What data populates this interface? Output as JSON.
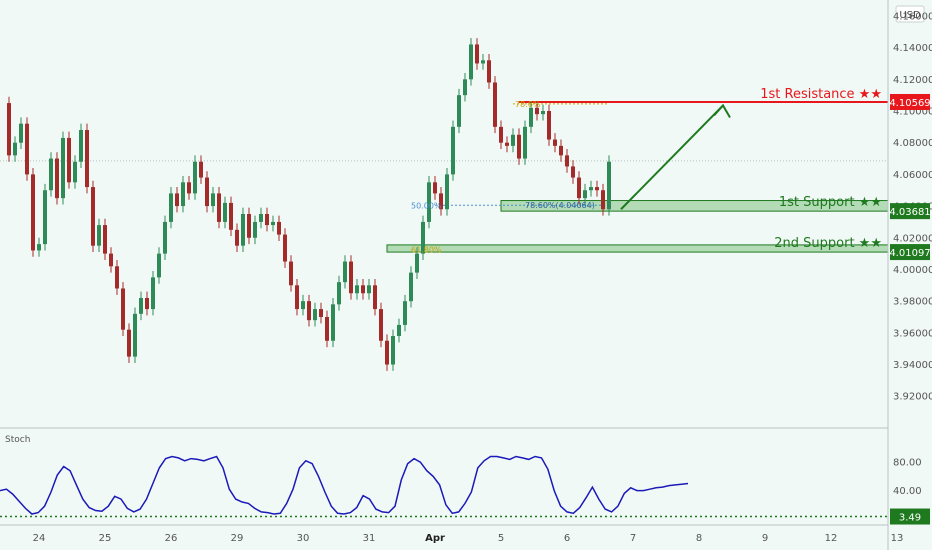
{
  "header": {
    "currency": "USD"
  },
  "chart_data": [
    {
      "type": "candlestick",
      "xlabel": "",
      "ylabel": "",
      "ylim": [
        3.905,
        4.165
      ],
      "x_ticks": [
        {
          "label": "24",
          "bar": 6
        },
        {
          "label": "25",
          "bar": 17
        },
        {
          "label": "26",
          "bar": 28
        },
        {
          "label": "29",
          "bar": 39
        },
        {
          "label": "30",
          "bar": 50
        },
        {
          "label": "31",
          "bar": 61
        },
        {
          "label": "Apr",
          "bar": 72
        },
        {
          "label": "5",
          "bar": 83
        },
        {
          "label": "6",
          "bar": 94
        },
        {
          "label": "7",
          "bar": 105
        },
        {
          "label": "8",
          "bar": 116
        },
        {
          "label": "9",
          "bar": 127
        },
        {
          "label": "12",
          "bar": 138
        },
        {
          "label": "13",
          "bar": 149
        }
      ],
      "y_ticks": [
        "4.16000",
        "4.14000",
        "4.12000",
        "4.10000",
        "4.08000",
        "4.06000",
        "4.04000",
        "4.02000",
        "4.00000",
        "3.98000",
        "3.96000",
        "3.94000",
        "3.92000"
      ],
      "close_path": [
        [
          0,
          4.105
        ],
        [
          1,
          4.072
        ],
        [
          2,
          4.08
        ],
        [
          3,
          4.092
        ],
        [
          4,
          4.06
        ],
        [
          5,
          4.012
        ],
        [
          6,
          4.016
        ],
        [
          7,
          4.05
        ],
        [
          8,
          4.07
        ],
        [
          9,
          4.045
        ],
        [
          10,
          4.083
        ],
        [
          11,
          4.055
        ],
        [
          12,
          4.068
        ],
        [
          13,
          4.088
        ],
        [
          14,
          4.052
        ],
        [
          15,
          4.015
        ],
        [
          16,
          4.028
        ],
        [
          17,
          4.01
        ],
        [
          18,
          4.002
        ],
        [
          19,
          3.988
        ],
        [
          20,
          3.962
        ],
        [
          21,
          3.945
        ],
        [
          22,
          3.972
        ],
        [
          23,
          3.982
        ],
        [
          24,
          3.975
        ],
        [
          25,
          3.995
        ],
        [
          26,
          4.01
        ],
        [
          27,
          4.03
        ],
        [
          28,
          4.048
        ],
        [
          29,
          4.04
        ],
        [
          30,
          4.055
        ],
        [
          31,
          4.048
        ],
        [
          32,
          4.068
        ],
        [
          33,
          4.058
        ],
        [
          34,
          4.04
        ],
        [
          35,
          4.048
        ],
        [
          36,
          4.03
        ],
        [
          37,
          4.042
        ],
        [
          38,
          4.025
        ],
        [
          39,
          4.015
        ],
        [
          40,
          4.035
        ],
        [
          41,
          4.02
        ],
        [
          42,
          4.03
        ],
        [
          43,
          4.035
        ],
        [
          44,
          4.028
        ],
        [
          45,
          4.03
        ],
        [
          46,
          4.022
        ],
        [
          47,
          4.005
        ],
        [
          48,
          3.99
        ],
        [
          49,
          3.975
        ],
        [
          50,
          3.98
        ],
        [
          51,
          3.968
        ],
        [
          52,
          3.975
        ],
        [
          53,
          3.97
        ],
        [
          54,
          3.955
        ],
        [
          55,
          3.978
        ],
        [
          56,
          3.992
        ],
        [
          57,
          4.005
        ],
        [
          58,
          3.985
        ],
        [
          59,
          3.99
        ],
        [
          60,
          3.985
        ],
        [
          61,
          3.99
        ],
        [
          62,
          3.975
        ],
        [
          63,
          3.955
        ],
        [
          64,
          3.94
        ],
        [
          65,
          3.958
        ],
        [
          66,
          3.965
        ],
        [
          67,
          3.98
        ],
        [
          68,
          3.998
        ],
        [
          69,
          4.01
        ],
        [
          70,
          4.03
        ],
        [
          71,
          4.055
        ],
        [
          72,
          4.048
        ],
        [
          73,
          4.038
        ],
        [
          74,
          4.06
        ],
        [
          75,
          4.09
        ],
        [
          76,
          4.11
        ],
        [
          77,
          4.12
        ],
        [
          78,
          4.142
        ],
        [
          79,
          4.13
        ],
        [
          80,
          4.132
        ],
        [
          81,
          4.118
        ],
        [
          82,
          4.09
        ],
        [
          83,
          4.08
        ],
        [
          84,
          4.078
        ],
        [
          85,
          4.085
        ],
        [
          86,
          4.07
        ],
        [
          87,
          4.09
        ],
        [
          88,
          4.102
        ],
        [
          89,
          4.098
        ],
        [
          90,
          4.1
        ],
        [
          91,
          4.082
        ],
        [
          92,
          4.078
        ],
        [
          93,
          4.072
        ],
        [
          94,
          4.065
        ],
        [
          95,
          4.058
        ],
        [
          96,
          4.045
        ],
        [
          97,
          4.05
        ],
        [
          98,
          4.052
        ],
        [
          99,
          4.05
        ],
        [
          100,
          4.038
        ],
        [
          101,
          4.068
        ]
      ],
      "annotations": {
        "resistance_1": {
          "label": "1st Resistance ★★",
          "value": "4.10569",
          "level": 4.10569,
          "color": "#e8171b"
        },
        "support_1": {
          "label": "1st Support ★★",
          "value": "4.03681",
          "level": 4.03681,
          "color": "#1f7a1f"
        },
        "support_2": {
          "label": "2nd Support ★★",
          "value": "4.01097",
          "level": 4.01097,
          "color": "#1f7a1f"
        },
        "fib_resistance": {
          "label": "78.6%",
          "level": 4.1045
        },
        "fib_50": {
          "label": "50.00%",
          "level": 4.0405
        },
        "fib_786_support": {
          "label": "78.60%(4.04064)",
          "level": 4.04064
        },
        "fib_618": {
          "label": "61.80%",
          "level": 4.0125
        },
        "current_price_level": 4.0685
      },
      "colors": {
        "up": "#2e8b57",
        "down": "#a52a2a",
        "background": "#f1f9f7"
      }
    },
    {
      "type": "line",
      "title": "Stoch",
      "ylim": [
        0,
        100
      ],
      "y_ticks": [
        "80.00",
        "40.00"
      ],
      "series": [
        {
          "values": [
            40,
            42,
            35,
            25,
            15,
            7,
            9,
            18,
            38,
            62,
            74,
            68,
            48,
            28,
            16,
            12,
            11,
            18,
            32,
            28,
            15,
            10,
            14,
            28,
            50,
            72,
            85,
            88,
            86,
            82,
            85,
            84,
            82,
            85,
            88,
            72,
            42,
            28,
            24,
            22,
            15,
            10,
            9,
            7,
            8,
            22,
            42,
            72,
            82,
            78,
            60,
            38,
            18,
            8,
            7,
            9,
            16,
            33,
            28,
            14,
            10,
            9,
            18,
            55,
            78,
            85,
            80,
            68,
            60,
            48,
            20,
            8,
            10,
            22,
            38,
            72,
            82,
            88,
            88,
            86,
            84,
            88,
            86,
            84,
            88,
            86,
            70,
            40,
            18,
            10,
            8,
            16,
            30,
            45,
            28,
            14,
            10,
            18,
            36,
            44,
            40,
            40,
            42,
            44,
            45,
            47,
            48,
            49,
            50
          ],
          "color": "#1a1ab8"
        }
      ],
      "annotations": {
        "low_level": {
          "label": "3.49",
          "value": 3.49
        }
      }
    }
  ]
}
